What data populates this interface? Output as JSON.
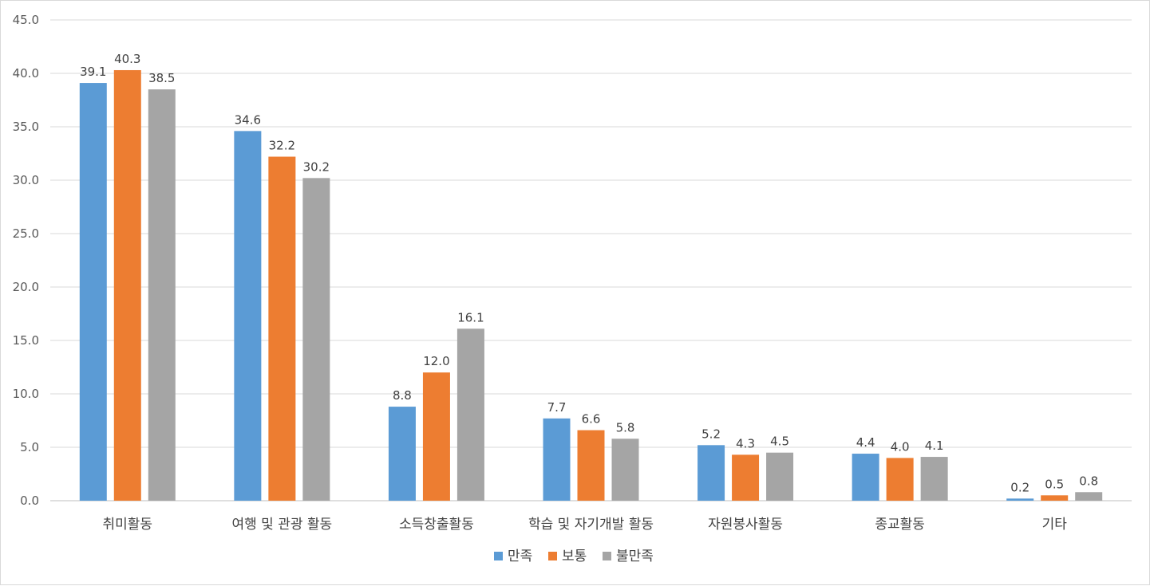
{
  "chart_data": {
    "type": "bar",
    "title": "",
    "xlabel": "",
    "ylabel": "",
    "ylim": [
      0,
      45
    ],
    "ytick_step": 5,
    "grid": true,
    "legend_position": "bottom",
    "categories": [
      "취미활동",
      "여행 및 관광 활동",
      "소득창출활동",
      "학습 및 자기개발 활동",
      "자원봉사활동",
      "종교활동",
      "기타"
    ],
    "series": [
      {
        "name": "만족",
        "color": "#5b9bd5",
        "values": [
          39.1,
          34.6,
          8.8,
          7.7,
          5.2,
          4.4,
          0.2
        ]
      },
      {
        "name": "보통",
        "color": "#ed7d31",
        "values": [
          40.3,
          32.2,
          12.0,
          6.6,
          4.3,
          4.0,
          0.5
        ]
      },
      {
        "name": "불만족",
        "color": "#a5a5a5",
        "values": [
          38.5,
          30.2,
          16.1,
          5.8,
          4.5,
          4.1,
          0.8
        ]
      }
    ]
  }
}
